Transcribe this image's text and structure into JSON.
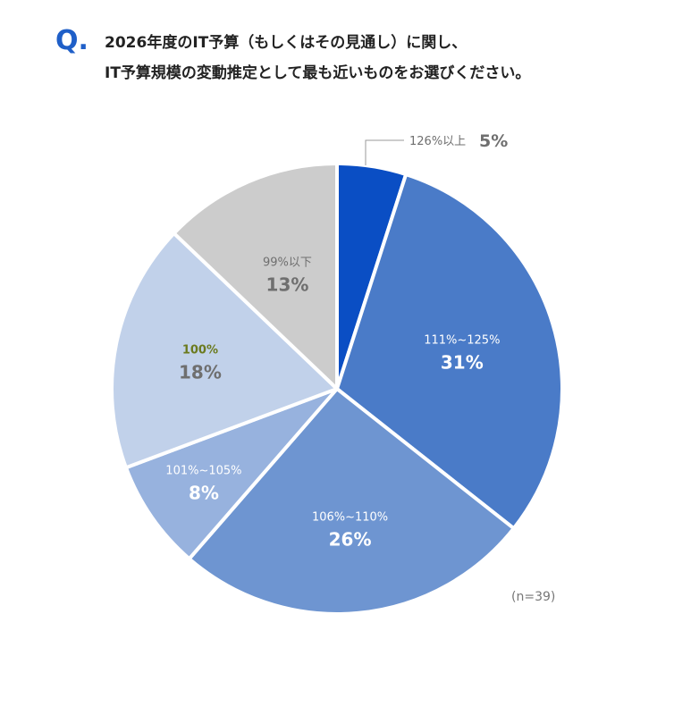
{
  "question": {
    "mark": "Q.",
    "line1": "2026年度のIT予算（もしくはその見通し）に関し、",
    "line2": "IT予算規模の変動推定として最も近いものをお選びください。"
  },
  "note": "(n=39)",
  "chart_data": {
    "type": "pie",
    "slices": [
      {
        "label": "126%以上",
        "value": 5,
        "value_label": "5%",
        "color": "#0a4ec4"
      },
      {
        "label": "111%~125%",
        "value": 31,
        "value_label": "31%",
        "color": "#4a7bc8"
      },
      {
        "label": "106%~110%",
        "value": 26,
        "value_label": "26%",
        "color": "#6e95d1"
      },
      {
        "label": "101%~105%",
        "value": 8,
        "value_label": "8%",
        "color": "#97b2de"
      },
      {
        "label": "100%",
        "value": 18,
        "value_label": "18%",
        "color": "#c1d1ea"
      },
      {
        "label": "99%以下",
        "value": 13,
        "value_label": "13%",
        "color": "#cccccc"
      }
    ]
  }
}
